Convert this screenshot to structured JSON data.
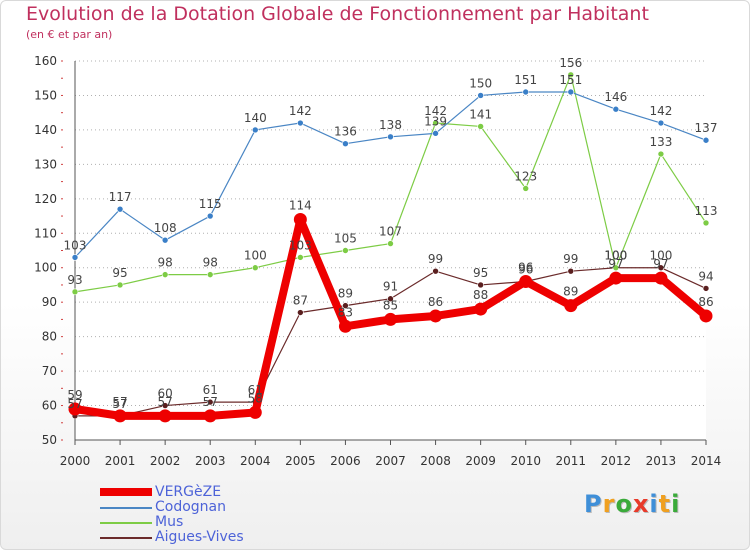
{
  "title": "Evolution de la Dotation Globale de Fonctionnement par Habitant",
  "subtitle": "(en € et par an)",
  "chart_data": {
    "type": "line",
    "title": "Evolution de la Dotation Globale de Fonctionnement par Habitant",
    "subtitle": "(en € et par an)",
    "xlabel": "",
    "ylabel": "",
    "x": [
      2000,
      2001,
      2002,
      2003,
      2004,
      2005,
      2006,
      2007,
      2008,
      2009,
      2010,
      2011,
      2012,
      2013,
      2014
    ],
    "ylim": [
      50,
      160
    ],
    "yticks": [
      50,
      60,
      70,
      80,
      90,
      100,
      110,
      120,
      130,
      140,
      150,
      160
    ],
    "grid": "horizontal-dotted",
    "legend_position": "bottom-left",
    "series": [
      {
        "name": "VERGèZE",
        "color": "#ee0000",
        "values": [
          59,
          57,
          57,
          57,
          58,
          114,
          83,
          85,
          86,
          88,
          96,
          89,
          97,
          97,
          86
        ]
      },
      {
        "name": "Codognan",
        "color": "#4a86c4",
        "values": [
          103,
          117,
          108,
          115,
          140,
          142,
          136,
          138,
          139,
          150,
          151,
          151,
          146,
          142,
          137
        ]
      },
      {
        "name": "Mus",
        "color": "#7dcc45",
        "values": [
          93,
          95,
          98,
          98,
          100,
          103,
          105,
          107,
          142,
          141,
          123,
          156,
          100,
          133,
          113
        ]
      },
      {
        "name": "Aigues-Vives",
        "color": "#6b2b2b",
        "values": [
          57,
          57,
          60,
          61,
          61,
          87,
          89,
          91,
          99,
          95,
          96,
          99,
          100,
          100,
          94
        ]
      }
    ]
  },
  "logo": {
    "letters": [
      "P",
      "r",
      "o",
      "x",
      "i",
      "t",
      "i"
    ],
    "colors": [
      "#3f8fd8",
      "#f0a020",
      "#3aaa3a",
      "#e83a2a",
      "#3f8fd8",
      "#f0a020",
      "#3aaa3a"
    ]
  }
}
